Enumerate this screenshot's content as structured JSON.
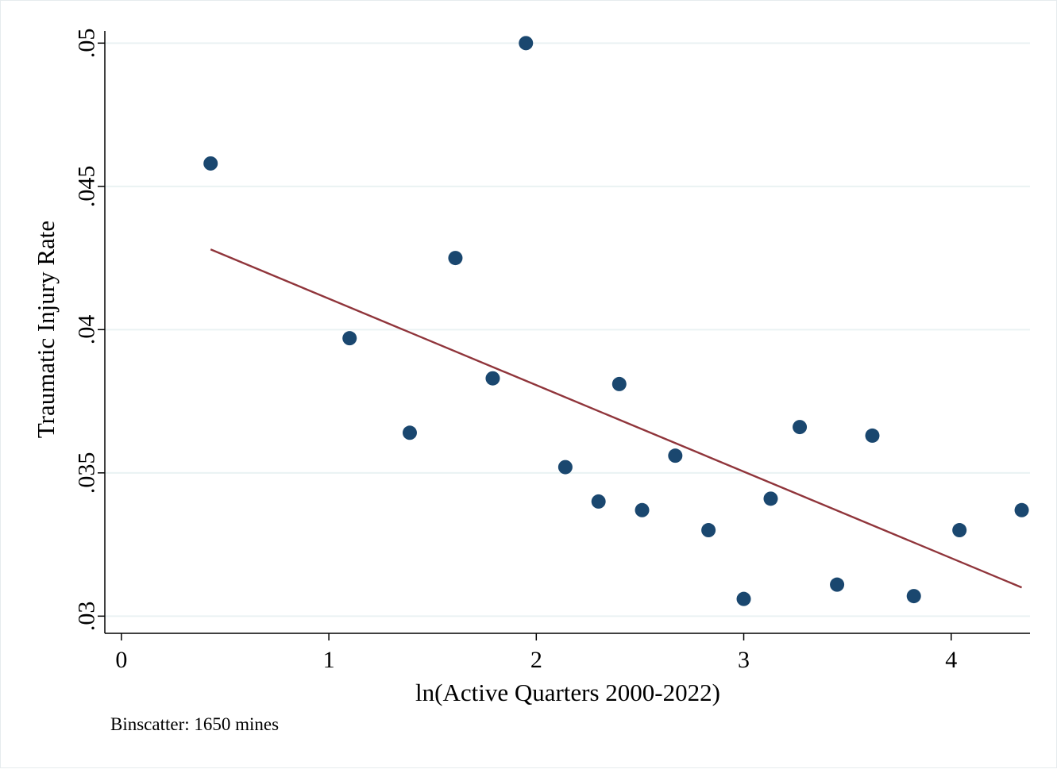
{
  "chart_data": {
    "type": "scatter",
    "title": "",
    "xlabel": "ln(Active Quarters 2000-2022)",
    "ylabel": "Traumatic Injury Rate",
    "note": "Binscatter: 1650 mines",
    "xlim": [
      -0.08,
      4.38
    ],
    "ylim": [
      0.0294,
      0.0512
    ],
    "x_ticks": [
      0,
      1,
      2,
      3,
      4
    ],
    "x_tick_labels": [
      "0",
      "1",
      "2",
      "3",
      "4"
    ],
    "y_ticks": [
      0.03,
      0.035,
      0.04,
      0.045,
      0.05
    ],
    "y_tick_labels": [
      ".03",
      ".035",
      ".04",
      ".045",
      ".05"
    ],
    "grid": "horizontal",
    "series": [
      {
        "type": "scatter",
        "color": "#1a476f",
        "x": [
          0.43,
          1.1,
          1.39,
          1.61,
          1.79,
          1.95,
          2.14,
          2.3,
          2.4,
          2.51,
          2.67,
          2.83,
          3.0,
          3.13,
          3.27,
          3.45,
          3.62,
          3.82,
          4.04,
          4.34
        ],
        "y": [
          0.0458,
          0.0397,
          0.0364,
          0.0425,
          0.0383,
          0.05,
          0.0352,
          0.034,
          0.0381,
          0.0337,
          0.0356,
          0.033,
          0.0306,
          0.0341,
          0.0366,
          0.0311,
          0.0363,
          0.0307,
          0.033,
          0.0337
        ]
      },
      {
        "type": "line",
        "color": "#90353b",
        "x": [
          0.43,
          4.34
        ],
        "y": [
          0.0428,
          0.031
        ]
      }
    ]
  }
}
